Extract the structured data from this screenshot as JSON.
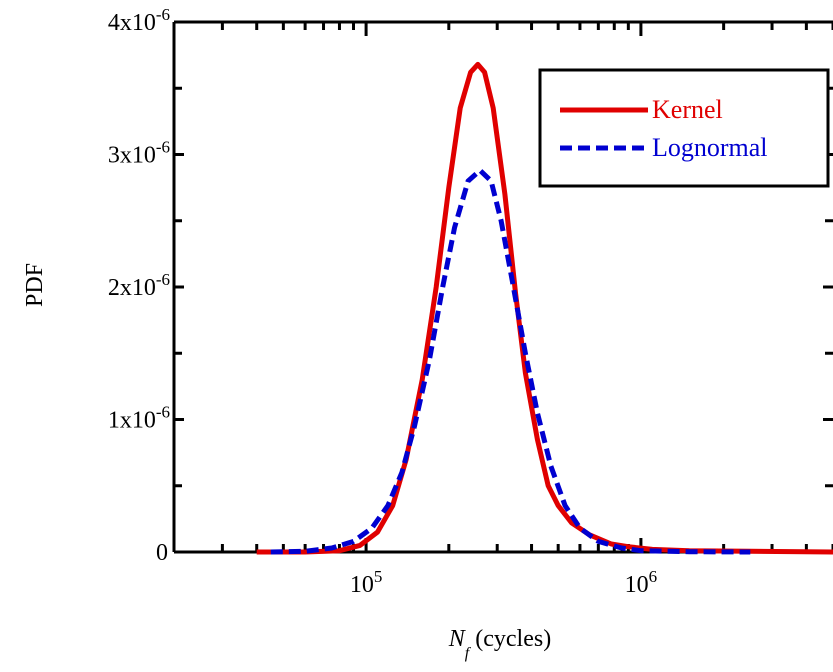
{
  "chart_data": {
    "type": "line",
    "title": "",
    "xlabel_main": "N",
    "xlabel_sub": "f",
    "xlabel_unit": " (cycles)",
    "ylabel": "PDF",
    "xscale": "log",
    "xlim": [
      20000,
      5000000
    ],
    "ylim": [
      0,
      4e-06
    ],
    "x_ticks": [
      {
        "value": 100000,
        "base": "10",
        "exp": "5"
      },
      {
        "value": 1000000,
        "base": "10",
        "exp": "6"
      }
    ],
    "y_ticks": [
      {
        "value": 0,
        "base": "0",
        "exp": ""
      },
      {
        "value": 1e-06,
        "base": "1x10",
        "exp": "-6"
      },
      {
        "value": 2e-06,
        "base": "2x10",
        "exp": "-6"
      },
      {
        "value": 3e-06,
        "base": "3x10",
        "exp": "-6"
      },
      {
        "value": 4e-06,
        "base": "4x10",
        "exp": "-6"
      }
    ],
    "grid": false,
    "legend_position": "top-right",
    "series": [
      {
        "name": "Kernel",
        "color": "#e00000",
        "style": "solid",
        "points": [
          [
            40000,
            0
          ],
          [
            60000,
            0.0
          ],
          [
            80000,
            1e-08
          ],
          [
            95000,
            5e-08
          ],
          [
            110000,
            1.5e-07
          ],
          [
            125000,
            3.5e-07
          ],
          [
            140000,
            7e-07
          ],
          [
            160000,
            1.3e-06
          ],
          [
            180000,
            2e-06
          ],
          [
            200000,
            2.75e-06
          ],
          [
            220000,
            3.35e-06
          ],
          [
            240000,
            3.62e-06
          ],
          [
            255000,
            3.68e-06
          ],
          [
            270000,
            3.62e-06
          ],
          [
            290000,
            3.35e-06
          ],
          [
            320000,
            2.7e-06
          ],
          [
            350000,
            1.95e-06
          ],
          [
            380000,
            1.35e-06
          ],
          [
            420000,
            8.5e-07
          ],
          [
            460000,
            5e-07
          ],
          [
            500000,
            3.5e-07
          ],
          [
            560000,
            2.2e-07
          ],
          [
            650000,
            1.3e-07
          ],
          [
            780000,
            6e-08
          ],
          [
            900000,
            4e-08
          ],
          [
            1100000,
            2e-08
          ],
          [
            1500000,
            1e-08
          ],
          [
            2500000,
            5e-09
          ],
          [
            5000000,
            0.0
          ]
        ]
      },
      {
        "name": "Lognormal",
        "color": "#0000d0",
        "style": "dashed",
        "points": [
          [
            45000,
            0.0
          ],
          [
            60000,
            5e-09
          ],
          [
            75000,
            3e-08
          ],
          [
            90000,
            8e-08
          ],
          [
            105000,
            1.8e-07
          ],
          [
            120000,
            3.5e-07
          ],
          [
            135000,
            6e-07
          ],
          [
            150000,
            9.5e-07
          ],
          [
            170000,
            1.45e-06
          ],
          [
            190000,
            2e-06
          ],
          [
            210000,
            2.45e-06
          ],
          [
            235000,
            2.8e-06
          ],
          [
            260000,
            2.88e-06
          ],
          [
            285000,
            2.8e-06
          ],
          [
            310000,
            2.5e-06
          ],
          [
            340000,
            2.05e-06
          ],
          [
            380000,
            1.5e-06
          ],
          [
            420000,
            1.05e-06
          ],
          [
            470000,
            6.5e-07
          ],
          [
            530000,
            3.5e-07
          ],
          [
            600000,
            1.8e-07
          ],
          [
            700000,
            8e-08
          ],
          [
            850000,
            3e-08
          ],
          [
            1000000,
            1e-08
          ],
          [
            1500000,
            2e-09
          ],
          [
            2500000,
            0.0
          ]
        ]
      }
    ]
  }
}
